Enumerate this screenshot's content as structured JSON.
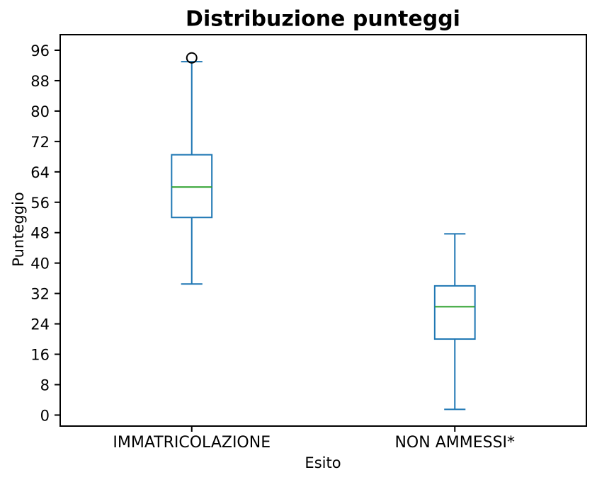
{
  "chart_data": {
    "type": "boxplot",
    "title": "Distribuzione punteggi",
    "xlabel": "Esito",
    "ylabel": "Punteggio",
    "categories": [
      "IMMATRICOLAZIONE",
      "NON AMMESSI*"
    ],
    "series": [
      {
        "name": "IMMATRICOLAZIONE",
        "whislo": 34.5,
        "q1": 52,
        "med": 60,
        "q3": 68.5,
        "whishi": 93,
        "fliers": [
          94
        ]
      },
      {
        "name": "NON AMMESSI*",
        "whislo": 1.5,
        "q1": 20,
        "med": 28.5,
        "q3": 34,
        "whishi": 47.7,
        "fliers": []
      }
    ],
    "positions": [
      1,
      2
    ],
    "xlim": [
      0.5,
      2.5
    ],
    "ylim": [
      -2.9,
      100.1
    ],
    "yticks": [
      0,
      8,
      16,
      24,
      32,
      40,
      48,
      56,
      64,
      72,
      80,
      88,
      96
    ],
    "grid": false,
    "legend": "none",
    "box_width_units": 0.153,
    "cap_width_units": 0.081,
    "colors": {
      "box": "#1f77b4",
      "whisker": "#1f77b4",
      "cap": "#1f77b4",
      "median": "#2ca02c",
      "flier_edge": "#000000",
      "axis": "#000000",
      "text": "#000000",
      "background": "#ffffff"
    }
  }
}
